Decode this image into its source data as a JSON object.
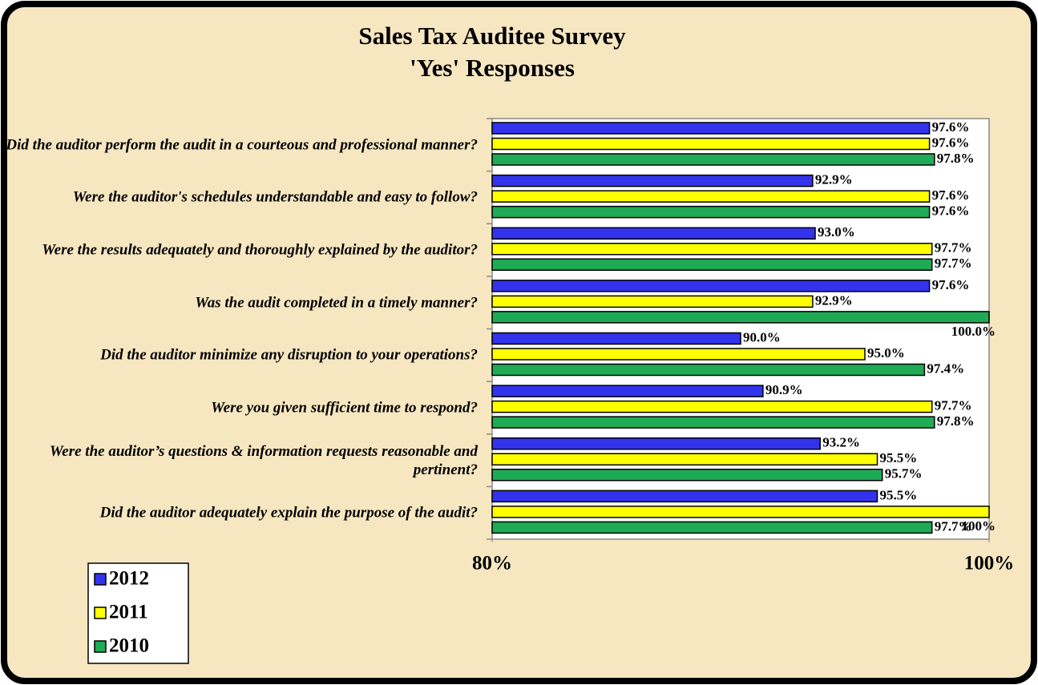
{
  "chart_data": {
    "type": "barh",
    "title": "Sales Tax Auditee Survey",
    "subtitle": "'Yes' Responses",
    "categories": [
      "Did the auditor perform the audit in a courteous and professional manner?",
      "Were the auditor's schedules understandable and easy to follow?",
      "Were the results adequately and thoroughly explained by the auditor?",
      "Was the audit completed in a timely manner?",
      "Did the auditor minimize any disruption to your operations?",
      "Were you given sufficient time to respond?",
      "Were the auditor’s questions & information requests reasonable and pertinent?",
      "Did the auditor adequately explain the purpose of the audit?"
    ],
    "series": [
      {
        "name": "2012",
        "color": "#3333ee",
        "values": [
          97.6,
          92.9,
          93.0,
          97.6,
          90.0,
          90.9,
          93.2,
          95.5
        ],
        "value_labels": [
          "97.6%",
          "92.9%",
          "93.0%",
          "97.6%",
          "90.0%",
          "90.9%",
          "93.2%",
          "95.5%"
        ]
      },
      {
        "name": "2011",
        "color": "#ffff00",
        "values": [
          97.6,
          97.6,
          97.7,
          92.9,
          95.0,
          97.7,
          95.5,
          100
        ],
        "value_labels": [
          "97.6%",
          "97.6%",
          "97.7%",
          "92.9%",
          "95.0%",
          "97.7%",
          "95.5%",
          "100%"
        ]
      },
      {
        "name": "2010",
        "color": "#1faa55",
        "values": [
          97.8,
          97.6,
          97.7,
          100.0,
          97.4,
          97.8,
          95.7,
          97.7
        ],
        "value_labels": [
          "97.8%",
          "97.6%",
          "97.7%",
          "100.0%",
          "97.4%",
          "97.8%",
          "95.7%",
          "97.7%"
        ]
      }
    ],
    "xlim": [
      80,
      100
    ],
    "xticks": [
      {
        "value": 80,
        "label": "80%"
      },
      {
        "value": 100,
        "label": "100%"
      }
    ],
    "legend": "bottom-left"
  }
}
